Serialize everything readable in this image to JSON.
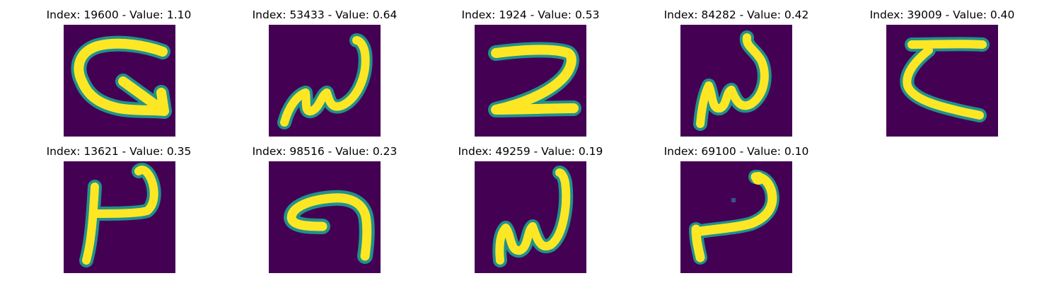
{
  "colors": {
    "background": "#440154",
    "stroke": "#fde725",
    "edge": "#27ad81",
    "mid": "#21918c"
  },
  "panels": [
    {
      "title": "Index: 19600 - Value: 1.10",
      "glyph": "glyph-19600"
    },
    {
      "title": "Index: 53433 - Value: 0.64",
      "glyph": "glyph-53433"
    },
    {
      "title": "Index: 1924 - Value: 0.53",
      "glyph": "glyph-1924"
    },
    {
      "title": "Index: 84282 - Value: 0.42",
      "glyph": "glyph-84282"
    },
    {
      "title": "Index: 39009 - Value: 0.40",
      "glyph": "glyph-39009"
    },
    {
      "title": "Index: 13621 - Value: 0.35",
      "glyph": "glyph-13621"
    },
    {
      "title": "Index: 98516 - Value: 0.23",
      "glyph": "glyph-98516"
    },
    {
      "title": "Index: 49259 - Value: 0.19",
      "glyph": "glyph-49259"
    },
    {
      "title": "Index: 69100 - Value: 0.10",
      "glyph": "glyph-69100"
    }
  ]
}
